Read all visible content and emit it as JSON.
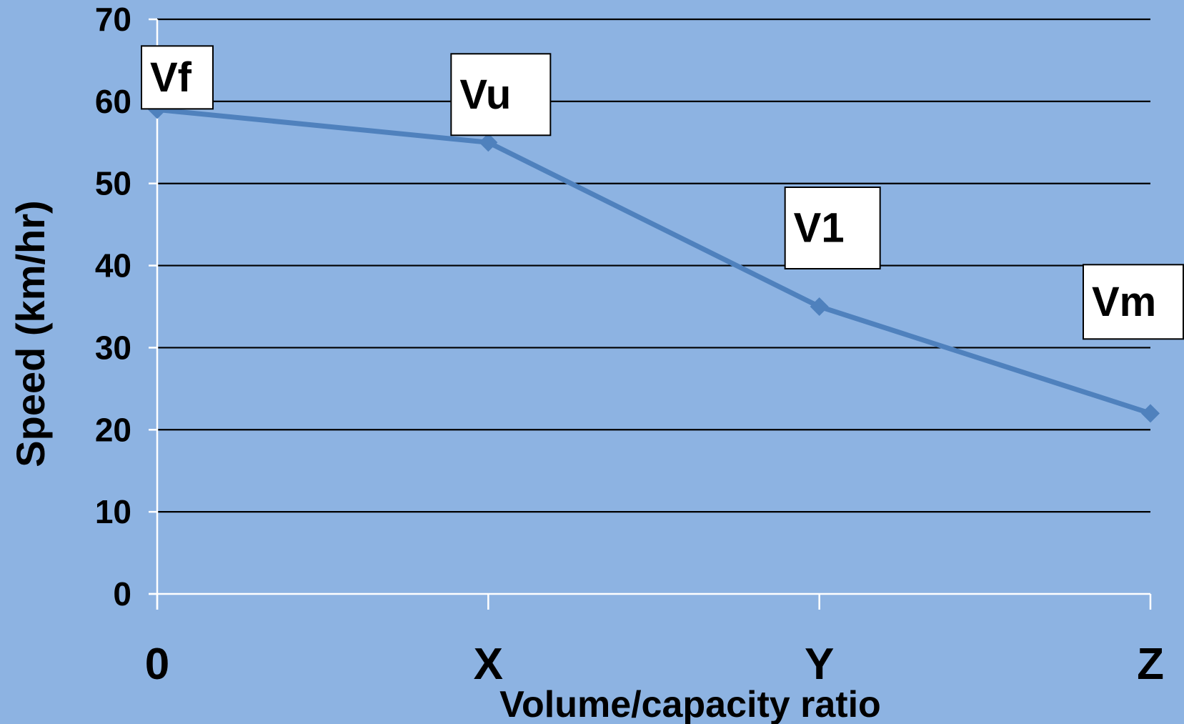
{
  "chart_data": {
    "type": "line",
    "categories": [
      "0",
      "X",
      "Y",
      "Z"
    ],
    "series": [
      {
        "values": [
          59,
          55,
          35,
          22
        ],
        "point_labels": [
          "Vf",
          "Vu",
          "V1",
          "Vm"
        ]
      }
    ],
    "xlabel": "Volume/capacity ratio",
    "ylabel": "Speed (km/hr)",
    "ylim": [
      0,
      70
    ],
    "yticks": [
      0,
      10,
      20,
      30,
      40,
      50,
      60,
      70
    ],
    "grid": true,
    "legend": "none"
  },
  "colors": {
    "background": "#8db3e2",
    "series_line": "#4f81bd",
    "gridline": "#000000",
    "axis_line": "#ffffff",
    "label_box": "#ffffff"
  }
}
